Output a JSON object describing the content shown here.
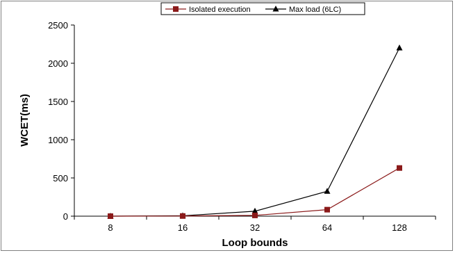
{
  "chart_data": {
    "type": "line",
    "categories": [
      "8",
      "16",
      "32",
      "64",
      "128"
    ],
    "series": [
      {
        "name": "Isolated execution",
        "values": [
          0,
          2,
          10,
          85,
          630
        ],
        "color": "#8B1A1A",
        "marker": "square"
      },
      {
        "name": "Max load (6LC)",
        "values": [
          0,
          5,
          65,
          325,
          2200
        ],
        "color": "#000000",
        "marker": "triangle"
      }
    ],
    "xlabel": "Loop bounds",
    "ylabel": "WCET(ms)",
    "ylim": [
      0,
      2500
    ],
    "yticks": [
      0,
      500,
      1000,
      1500,
      2000,
      2500
    ],
    "grid": false,
    "legend": "top"
  }
}
